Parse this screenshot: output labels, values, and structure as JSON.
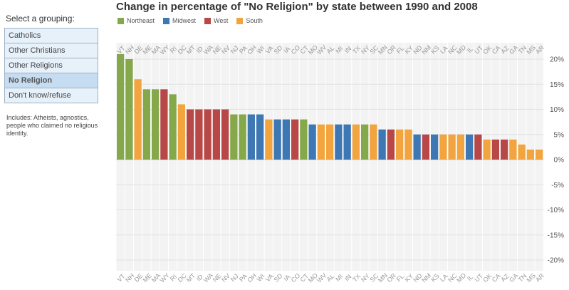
{
  "sidebar": {
    "select_label": "Select a grouping:",
    "groupings": [
      "Catholics",
      "Other Christians",
      "Other Religions",
      "No Religion",
      "Don't know/refuse"
    ],
    "selected": "No Religion",
    "note": "Includes: Atheists, agnostics, people who claimed no religious identity."
  },
  "chart_data": {
    "type": "bar",
    "title": "Change in percentage of \"No Religion\" by state between 1990 and 2008",
    "legend": [
      {
        "name": "Northeast",
        "color": "#84a84a"
      },
      {
        "name": "Midwest",
        "color": "#3d77b4"
      },
      {
        "name": "West",
        "color": "#b84848"
      },
      {
        "name": "South",
        "color": "#f2a43e"
      }
    ],
    "categories": [
      "VT",
      "NH",
      "DE",
      "ME",
      "MA",
      "WY",
      "RI",
      "DC",
      "MT",
      "ID",
      "WA",
      "NE",
      "NV",
      "NJ",
      "PA",
      "OH",
      "WI",
      "VA",
      "SD",
      "IA",
      "CO",
      "CT",
      "MO",
      "WV",
      "AL",
      "MI",
      "IN",
      "TX",
      "NY",
      "SC",
      "MN",
      "OR",
      "FL",
      "KY",
      "ND",
      "NM",
      "KS",
      "LA",
      "NC",
      "MD",
      "IL",
      "UT",
      "OK",
      "CA",
      "AZ",
      "GA",
      "TN",
      "MS",
      "AR"
    ],
    "regions": [
      "Northeast",
      "Northeast",
      "South",
      "Northeast",
      "Northeast",
      "West",
      "Northeast",
      "South",
      "West",
      "West",
      "West",
      "West",
      "West",
      "Northeast",
      "Northeast",
      "Midwest",
      "Midwest",
      "South",
      "Midwest",
      "Midwest",
      "West",
      "Northeast",
      "Midwest",
      "South",
      "South",
      "Midwest",
      "Midwest",
      "South",
      "Northeast",
      "South",
      "Midwest",
      "West",
      "South",
      "South",
      "Midwest",
      "West",
      "Midwest",
      "South",
      "South",
      "South",
      "Midwest",
      "West",
      "South",
      "West",
      "West",
      "South",
      "South",
      "South",
      "South"
    ],
    "values": [
      21,
      20,
      16,
      14,
      14,
      14,
      13,
      11,
      10,
      10,
      10,
      10,
      10,
      9,
      9,
      9,
      9,
      8,
      8,
      8,
      8,
      8,
      7,
      7,
      7,
      7,
      7,
      7,
      7,
      7,
      6,
      6,
      6,
      6,
      5,
      5,
      5,
      5,
      5,
      5,
      5,
      5,
      4,
      4,
      4,
      4,
      3,
      2,
      2
    ],
    "yticks": [
      20,
      15,
      10,
      5,
      0,
      -5,
      -10,
      -15,
      -20
    ],
    "ylim": [
      -22,
      22
    ],
    "tick_suffix": "%",
    "xlabel": "",
    "ylabel": ""
  }
}
